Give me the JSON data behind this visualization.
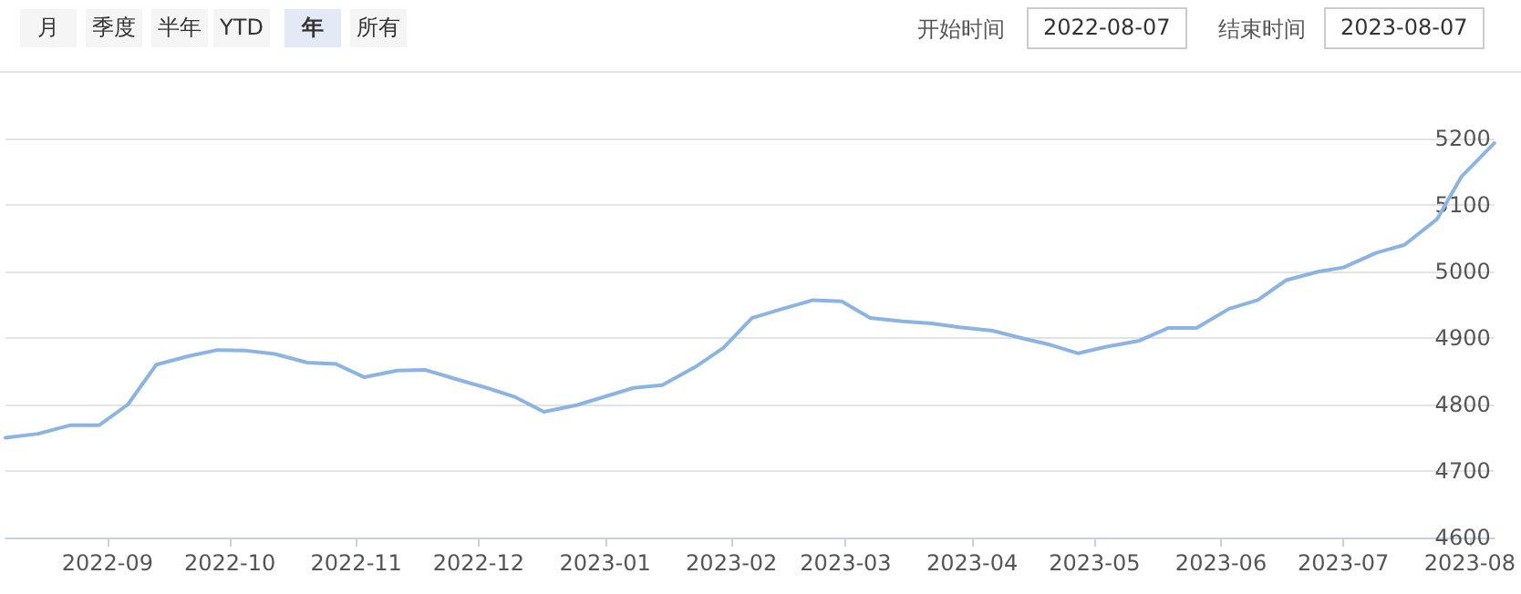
{
  "chart_data": {
    "type": "line",
    "annotations": [
      "月",
      "季度",
      "半年",
      "YTD",
      "年",
      "所有",
      "开始时间",
      "2022-08-07",
      "结束时间",
      "2023-08-07"
    ],
    "x": [
      "2022-08-07",
      "2022-08-15",
      "2022-08-23",
      "2022-08-30",
      "2022-09-06",
      "2022-09-13",
      "2022-09-21",
      "2022-09-28",
      "2022-10-05",
      "2022-10-12",
      "2022-10-20",
      "2022-10-27",
      "2022-11-03",
      "2022-11-11",
      "2022-11-18",
      "2022-11-25",
      "2022-12-03",
      "2022-12-10",
      "2022-12-17",
      "2022-12-25",
      "2023-01-01",
      "2023-01-08",
      "2023-01-15",
      "2023-01-23",
      "2023-01-30",
      "2023-02-06",
      "2023-02-13",
      "2023-02-21",
      "2023-02-28",
      "2023-03-07",
      "2023-03-15",
      "2023-03-22",
      "2023-03-29",
      "2023-04-06",
      "2023-04-13",
      "2023-04-20",
      "2023-04-27",
      "2023-05-04",
      "2023-05-12",
      "2023-05-19",
      "2023-05-26",
      "2023-06-03",
      "2023-06-10",
      "2023-06-17",
      "2023-06-25",
      "2023-07-01",
      "2023-07-09",
      "2023-07-16",
      "2023-07-24",
      "2023-07-30",
      "2023-08-07"
    ],
    "series": [
      {
        "color": "#8cb4e2",
        "values": [
          4750,
          4756,
          4769,
          4769,
          4800,
          4860,
          4873,
          4882,
          4881,
          4876,
          4863,
          4861,
          4841,
          4851,
          4852,
          4839,
          4825,
          4811,
          4789,
          4799,
          4812,
          4825,
          4829,
          4856,
          4885,
          4930,
          4943,
          4957,
          4955,
          4930,
          4925,
          4922,
          4916,
          4911,
          4900,
          4890,
          4877,
          4887,
          4896,
          4915,
          4915,
          4944,
          4957,
          4987,
          5000,
          5006,
          5028,
          5040,
          5079,
          5143,
          5193
        ]
      }
    ],
    "xlim": [
      "2022-08-07",
      "2023-08-07"
    ],
    "xticks": [
      {
        "value": "2022-09-01",
        "label": "2022-09"
      },
      {
        "value": "2022-10-01",
        "label": "2022-10"
      },
      {
        "value": "2022-11-01",
        "label": "2022-11"
      },
      {
        "value": "2022-12-01",
        "label": "2022-12"
      },
      {
        "value": "2023-01-01",
        "label": "2023-01"
      },
      {
        "value": "2023-02-01",
        "label": "2023-02"
      },
      {
        "value": "2023-03-01",
        "label": "2023-03"
      },
      {
        "value": "2023-04-01",
        "label": "2023-04"
      },
      {
        "value": "2023-05-01",
        "label": "2023-05"
      },
      {
        "value": "2023-06-01",
        "label": "2023-06"
      },
      {
        "value": "2023-07-01",
        "label": "2023-07"
      },
      {
        "value": "2023-08-01",
        "label": "2023-08"
      }
    ],
    "ylim": [
      4600,
      5200
    ],
    "yticks": [
      4600,
      4700,
      4800,
      4900,
      5000,
      5100,
      5200
    ],
    "grid": "y",
    "marker": "none",
    "line_style": "solid"
  }
}
